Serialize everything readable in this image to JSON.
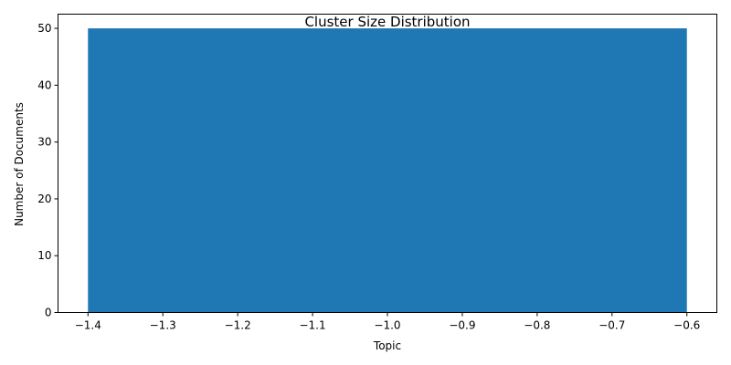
{
  "chart_data": {
    "type": "bar",
    "title": "Cluster Size Distribution",
    "xlabel": "Topic",
    "ylabel": "Number of Documents",
    "categories": [
      -1
    ],
    "values": [
      50
    ],
    "bar_width": 0.8,
    "bar_color": "#1f77b4",
    "xlim": [
      -1.44,
      -0.56
    ],
    "ylim": [
      0,
      52.5
    ],
    "xticks": [
      -1.4,
      -1.3,
      -1.2,
      -1.1,
      -1.0,
      -0.9,
      -0.8,
      -0.7,
      -0.6
    ],
    "xtick_labels": [
      "−1.4",
      "−1.3",
      "−1.2",
      "−1.1",
      "−1.0",
      "−0.9",
      "−0.8",
      "−0.7",
      "−0.6"
    ],
    "yticks": [
      0,
      10,
      20,
      30,
      40,
      50
    ],
    "ytick_labels": [
      "0",
      "10",
      "20",
      "30",
      "40",
      "50"
    ],
    "grid": false,
    "legend": "none"
  }
}
